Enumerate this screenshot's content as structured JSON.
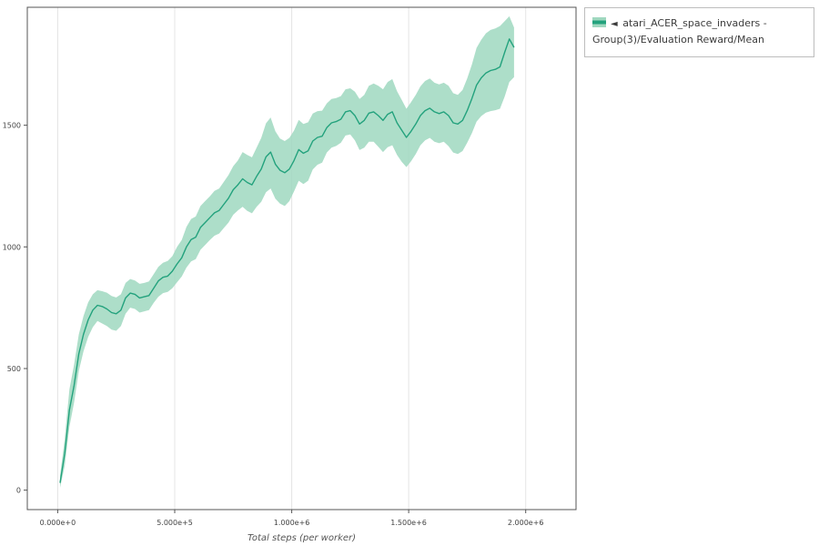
{
  "legend": {
    "marker": "◄",
    "label": "atari_ACER_space_invaders - Group(3)/Evaluation Reward/Mean"
  },
  "colors": {
    "line": "#23a27d",
    "band": "#9fd8bf",
    "grid": "#e4e4e4",
    "spine": "#555555",
    "tick_text": "#444444",
    "xlabel_text": "#555555"
  },
  "chart_data": {
    "type": "line",
    "title": "",
    "xlabel": "Total steps (per worker)",
    "ylabel": "",
    "xlim": [
      -130000,
      2215000
    ],
    "ylim": [
      -80,
      1985
    ],
    "grid": "vertical-only",
    "legend_position": "top-right-outside",
    "x_ticks": {
      "values": [
        0,
        500000,
        1000000,
        1500000,
        2000000
      ],
      "labels": [
        "0.000e+0",
        "5.000e+5",
        "1.000e+6",
        "1.500e+6",
        "2.000e+6"
      ]
    },
    "y_ticks": {
      "values": [
        0,
        500,
        1000,
        1500
      ],
      "labels": [
        "0",
        "500",
        "1000",
        "1500"
      ]
    },
    "series": [
      {
        "name": "atari_ACER_space_invaders - Group(3)/Evaluation Reward/Mean",
        "x": [
          10000,
          30000,
          50000,
          70000,
          90000,
          110000,
          130000,
          150000,
          170000,
          190000,
          210000,
          230000,
          250000,
          270000,
          290000,
          310000,
          330000,
          350000,
          370000,
          390000,
          410000,
          430000,
          450000,
          470000,
          490000,
          510000,
          530000,
          550000,
          570000,
          590000,
          610000,
          630000,
          650000,
          670000,
          690000,
          710000,
          730000,
          750000,
          770000,
          790000,
          810000,
          830000,
          850000,
          870000,
          890000,
          910000,
          930000,
          950000,
          970000,
          990000,
          1010000,
          1030000,
          1050000,
          1070000,
          1090000,
          1110000,
          1130000,
          1150000,
          1170000,
          1190000,
          1210000,
          1230000,
          1250000,
          1270000,
          1290000,
          1310000,
          1330000,
          1350000,
          1370000,
          1390000,
          1410000,
          1430000,
          1450000,
          1470000,
          1490000,
          1510000,
          1530000,
          1550000,
          1570000,
          1590000,
          1610000,
          1630000,
          1650000,
          1670000,
          1690000,
          1710000,
          1730000,
          1750000,
          1770000,
          1790000,
          1810000,
          1830000,
          1850000,
          1870000,
          1890000,
          1910000,
          1930000,
          1950000
        ],
        "mean": [
          30,
          150,
          330,
          430,
          560,
          640,
          700,
          740,
          760,
          755,
          745,
          730,
          725,
          740,
          790,
          810,
          805,
          790,
          795,
          800,
          830,
          860,
          875,
          880,
          900,
          930,
          955,
          1000,
          1030,
          1040,
          1080,
          1100,
          1120,
          1140,
          1150,
          1175,
          1200,
          1235,
          1255,
          1280,
          1265,
          1255,
          1290,
          1320,
          1370,
          1390,
          1340,
          1315,
          1305,
          1320,
          1355,
          1400,
          1385,
          1395,
          1435,
          1450,
          1455,
          1490,
          1510,
          1515,
          1525,
          1555,
          1560,
          1540,
          1505,
          1520,
          1550,
          1555,
          1540,
          1520,
          1545,
          1555,
          1510,
          1480,
          1450,
          1475,
          1505,
          1540,
          1560,
          1570,
          1555,
          1548,
          1555,
          1540,
          1510,
          1505,
          1520,
          1560,
          1610,
          1665,
          1695,
          1715,
          1725,
          1730,
          1740,
          1800,
          1855,
          1820
        ],
        "lower": [
          10,
          100,
          260,
          360,
          490,
          570,
          630,
          670,
          695,
          685,
          675,
          660,
          655,
          675,
          725,
          750,
          745,
          730,
          735,
          740,
          770,
          795,
          810,
          815,
          830,
          855,
          878,
          915,
          940,
          950,
          988,
          1008,
          1028,
          1046,
          1055,
          1078,
          1100,
          1132,
          1150,
          1165,
          1148,
          1138,
          1165,
          1185,
          1225,
          1240,
          1198,
          1178,
          1168,
          1188,
          1228,
          1272,
          1258,
          1272,
          1318,
          1338,
          1346,
          1388,
          1408,
          1415,
          1428,
          1458,
          1462,
          1438,
          1398,
          1408,
          1432,
          1432,
          1412,
          1390,
          1410,
          1418,
          1378,
          1350,
          1328,
          1352,
          1382,
          1418,
          1438,
          1448,
          1432,
          1426,
          1432,
          1414,
          1388,
          1382,
          1394,
          1428,
          1468,
          1515,
          1538,
          1552,
          1558,
          1562,
          1568,
          1618,
          1678,
          1698
        ],
        "upper": [
          60,
          210,
          415,
          515,
          640,
          715,
          772,
          805,
          822,
          818,
          812,
          798,
          792,
          805,
          852,
          868,
          862,
          848,
          852,
          858,
          888,
          918,
          935,
          942,
          962,
          1000,
          1028,
          1082,
          1115,
          1125,
          1168,
          1188,
          1208,
          1230,
          1240,
          1268,
          1295,
          1332,
          1355,
          1390,
          1378,
          1368,
          1408,
          1448,
          1508,
          1532,
          1475,
          1445,
          1435,
          1448,
          1478,
          1522,
          1505,
          1512,
          1548,
          1558,
          1560,
          1590,
          1608,
          1612,
          1620,
          1648,
          1652,
          1638,
          1608,
          1625,
          1662,
          1672,
          1662,
          1648,
          1678,
          1690,
          1640,
          1605,
          1568,
          1595,
          1625,
          1660,
          1682,
          1692,
          1675,
          1668,
          1675,
          1662,
          1632,
          1625,
          1645,
          1692,
          1750,
          1818,
          1852,
          1878,
          1892,
          1898,
          1908,
          1928,
          1948,
          1902
        ]
      }
    ]
  }
}
